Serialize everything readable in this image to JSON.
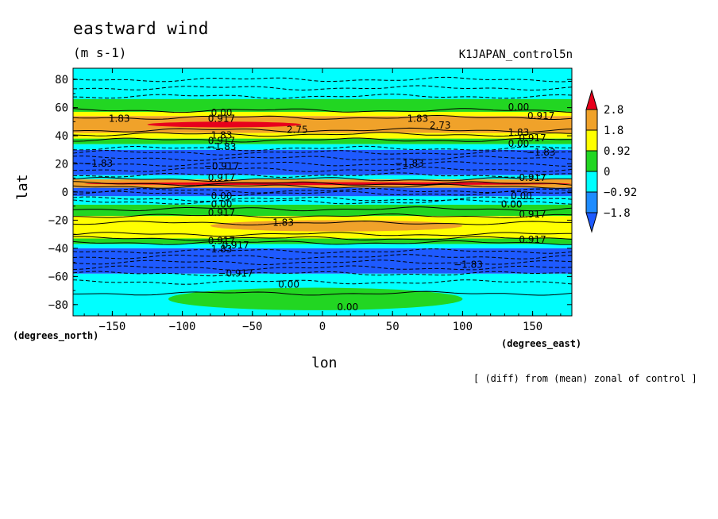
{
  "chart_data": {
    "type": "heatmap",
    "title": "eastward wind",
    "units": "(m s-1)",
    "dataset": "K1JAPAN_control5n",
    "xlabel": "lon",
    "ylabel": "lat",
    "x_units_label": "(degrees_east)",
    "y_units_label": "(degrees_north)",
    "note": "[ (diff) from (mean) zonal of control ]",
    "xlim": [
      -178,
      178
    ],
    "ylim": [
      -88,
      88
    ],
    "xticks": [
      -150,
      -100,
      -50,
      0,
      50,
      100,
      150
    ],
    "xtick_labels": [
      "−150",
      "−100",
      "−50",
      "0",
      "50",
      "100",
      "150"
    ],
    "yticks": [
      -80,
      -60,
      -40,
      -20,
      0,
      20,
      40,
      60,
      80
    ],
    "ytick_labels": [
      "−80",
      "−60",
      "−40",
      "−20",
      "0",
      "20",
      "40",
      "60",
      "80"
    ],
    "colorbar": {
      "levels": [
        "2.8",
        "1.8",
        "0.92",
        "0",
        "−0.92",
        "−1.8"
      ],
      "colors": [
        "#e8001c",
        "#f0a22a",
        "#ffff00",
        "#22d622",
        "#00ffff",
        "#1e8cff",
        "#1e5aff"
      ]
    },
    "bands": [
      {
        "lat_top": 88,
        "lat_bottom": 66,
        "color": "#00ffff"
      },
      {
        "lat_top": 66,
        "lat_bottom": 57,
        "color": "#22d622"
      },
      {
        "lat_top": 57,
        "lat_bottom": 54,
        "color": "#ffff00"
      },
      {
        "lat_top": 54,
        "lat_bottom": 42,
        "color": "#f0a22a"
      },
      {
        "lat_top": 42,
        "lat_bottom": 38,
        "color": "#ffff00"
      },
      {
        "lat_top": 38,
        "lat_bottom": 34,
        "color": "#22d622"
      },
      {
        "lat_top": 34,
        "lat_bottom": 30,
        "color": "#00ffff"
      },
      {
        "lat_top": 30,
        "lat_bottom": 12,
        "color": "#1e5aff"
      },
      {
        "lat_top": 12,
        "lat_bottom": 9,
        "color": "#00ffff"
      },
      {
        "lat_top": 9,
        "lat_bottom": 3,
        "color": "#f0a22a"
      },
      {
        "lat_top": 3,
        "lat_bottom": -3,
        "color": "#1e5aff"
      },
      {
        "lat_top": -3,
        "lat_bottom": -9,
        "color": "#00ffff"
      },
      {
        "lat_top": -9,
        "lat_bottom": -17,
        "color": "#22d622"
      },
      {
        "lat_top": -17,
        "lat_bottom": -33,
        "color": "#ffff00"
      },
      {
        "lat_top": -33,
        "lat_bottom": -37,
        "color": "#22d622"
      },
      {
        "lat_top": -37,
        "lat_bottom": -40,
        "color": "#00ffff"
      },
      {
        "lat_top": -40,
        "lat_bottom": -58,
        "color": "#1e5aff"
      },
      {
        "lat_top": -58,
        "lat_bottom": -88,
        "color": "#00ffff"
      }
    ],
    "patches": [
      {
        "lon": [
          -125,
          -15
        ],
        "lat": [
          50,
          46
        ],
        "color": "#e8001c"
      },
      {
        "lon": [
          -170,
          178
        ],
        "lat": [
          7,
          5
        ],
        "color": "#e8001c"
      },
      {
        "lon": [
          -80,
          100
        ],
        "lat": [
          -20,
          -28
        ],
        "color": "#f0a22a"
      },
      {
        "lon": [
          -110,
          100
        ],
        "lat": [
          -68,
          -84
        ],
        "color": "#22d622"
      },
      {
        "lon": [
          30,
          120
        ],
        "lat": [
          62,
          57
        ],
        "color": "#22d622"
      },
      {
        "lon": [
          -70,
          70
        ],
        "lat": [
          -44,
          -54
        ],
        "color": "#1e5aff"
      }
    ],
    "contour_labels": [
      {
        "text": "0.00",
        "lon": -72,
        "lat": 56
      },
      {
        "text": "0.917",
        "lon": -72,
        "lat": 52
      },
      {
        "text": "2.75",
        "lon": -18,
        "lat": 44
      },
      {
        "text": "1.83",
        "lon": -72,
        "lat": 40
      },
      {
        "text": "0.917",
        "lon": -72,
        "lat": 36
      },
      {
        "text": "−1.83",
        "lon": -72,
        "lat": 32
      },
      {
        "text": "1.83",
        "lon": -145,
        "lat": 52
      },
      {
        "text": "1.83",
        "lon": 68,
        "lat": 52
      },
      {
        "text": "2.73",
        "lon": 84,
        "lat": 47
      },
      {
        "text": "0.00",
        "lon": 140,
        "lat": 60
      },
      {
        "text": "0.917",
        "lon": 156,
        "lat": 54
      },
      {
        "text": "1.83",
        "lon": 140,
        "lat": 42
      },
      {
        "text": "0.917",
        "lon": 150,
        "lat": 38
      },
      {
        "text": "0.00",
        "lon": 140,
        "lat": 34
      },
      {
        "text": "−1.83",
        "lon": 156,
        "lat": 28
      },
      {
        "text": "−1.83",
        "lon": -160,
        "lat": 20
      },
      {
        "text": "−1.83",
        "lon": 62,
        "lat": 20
      },
      {
        "text": "−0.917",
        "lon": -72,
        "lat": 18
      },
      {
        "text": "0.917",
        "lon": -72,
        "lat": 10
      },
      {
        "text": "0.917",
        "lon": 150,
        "lat": 10
      },
      {
        "text": "0.00",
        "lon": -72,
        "lat": -3
      },
      {
        "text": "0.00",
        "lon": 142,
        "lat": -3
      },
      {
        "text": "0.00",
        "lon": -72,
        "lat": -9
      },
      {
        "text": "0.00",
        "lon": 135,
        "lat": -9
      },
      {
        "text": "0.917",
        "lon": -72,
        "lat": -15
      },
      {
        "text": "0.917",
        "lon": 150,
        "lat": -16
      },
      {
        "text": "1.83",
        "lon": -28,
        "lat": -22
      },
      {
        "text": "0.917",
        "lon": -72,
        "lat": -35
      },
      {
        "text": "0.917",
        "lon": 150,
        "lat": -34
      },
      {
        "text": "0.917",
        "lon": -62,
        "lat": -38
      },
      {
        "text": "1.83",
        "lon": -72,
        "lat": -41
      },
      {
        "text": "−1.83",
        "lon": 104,
        "lat": -52
      },
      {
        "text": "−0.917",
        "lon": -62,
        "lat": -58
      },
      {
        "text": "0.00",
        "lon": -24,
        "lat": -66
      },
      {
        "text": "0.00",
        "lon": 18,
        "lat": -82
      }
    ],
    "solid_contours_lat": [
      58,
      53,
      44,
      41,
      37,
      9,
      6,
      4,
      -12,
      -17,
      -22,
      -30,
      -33,
      -36,
      -72
    ],
    "dashed_contours_lat": [
      80,
      74,
      68,
      31,
      28,
      24,
      20,
      16,
      12,
      1,
      -1,
      -5,
      -7,
      -42,
      -46,
      -50,
      -54,
      -58,
      -64
    ]
  }
}
